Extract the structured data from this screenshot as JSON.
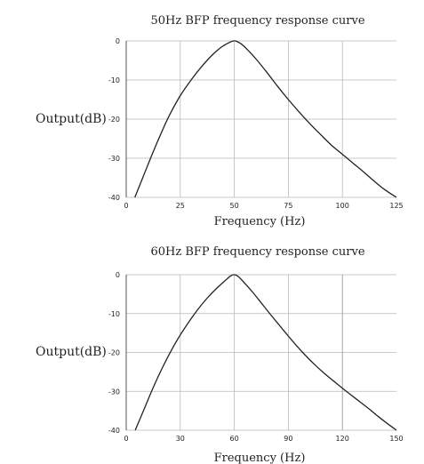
{
  "chart_data": [
    {
      "type": "line",
      "title": "50Hz BFP frequency response curve",
      "xlabel": "Frequency (Hz)",
      "ylabel": "Output(dB)",
      "xlim": [
        0,
        125
      ],
      "ylim": [
        -40,
        0
      ],
      "xticks": [
        "0",
        "25",
        "50",
        "75",
        "100",
        "125"
      ],
      "yticks": [
        "0",
        "-10",
        "-20",
        "-30",
        "-40"
      ],
      "grid": true,
      "series": [
        {
          "x": [
            4,
            8,
            12,
            16,
            20,
            25,
            30,
            35,
            40,
            44,
            47,
            49,
            50,
            51,
            53,
            56,
            60,
            65,
            70,
            75,
            80,
            85,
            90,
            95,
            100,
            105,
            110,
            115,
            120,
            125
          ],
          "y": [
            -40,
            -34.5,
            -29,
            -23.8,
            -19,
            -14,
            -10,
            -6.5,
            -3.5,
            -1.6,
            -0.6,
            -0.1,
            0,
            -0.1,
            -0.7,
            -2.2,
            -4.6,
            -8,
            -11.6,
            -15,
            -18.2,
            -21.2,
            -24,
            -26.7,
            -29,
            -31.3,
            -33.6,
            -36,
            -38.2,
            -40
          ]
        }
      ]
    },
    {
      "type": "line",
      "title": "60Hz BFP frequency response curve",
      "xlabel": "Frequency (Hz)",
      "ylabel": "Output(dB)",
      "xlim": [
        0,
        150
      ],
      "ylim": [
        -40,
        0
      ],
      "xticks": [
        "0",
        "30",
        "60",
        "90",
        "120",
        "150"
      ],
      "yticks": [
        "0",
        "-10",
        "-20",
        "-30",
        "-40"
      ],
      "grid": true,
      "series": [
        {
          "x": [
            5,
            10,
            15,
            20,
            25,
            30,
            35,
            40,
            45,
            50,
            55,
            58,
            60,
            62,
            65,
            70,
            75,
            80,
            85,
            90,
            95,
            100,
            105,
            110,
            115,
            120,
            125,
            130,
            135,
            140,
            145,
            150
          ],
          "y": [
            -40,
            -34.5,
            -29,
            -24,
            -19.5,
            -15.5,
            -12,
            -8.8,
            -6,
            -3.6,
            -1.5,
            -0.3,
            0,
            -0.4,
            -1.8,
            -4.4,
            -7.3,
            -10.2,
            -13,
            -15.8,
            -18.5,
            -21,
            -23.3,
            -25.4,
            -27.3,
            -29.2,
            -31,
            -32.8,
            -34.6,
            -36.5,
            -38.3,
            -40
          ]
        }
      ]
    }
  ]
}
